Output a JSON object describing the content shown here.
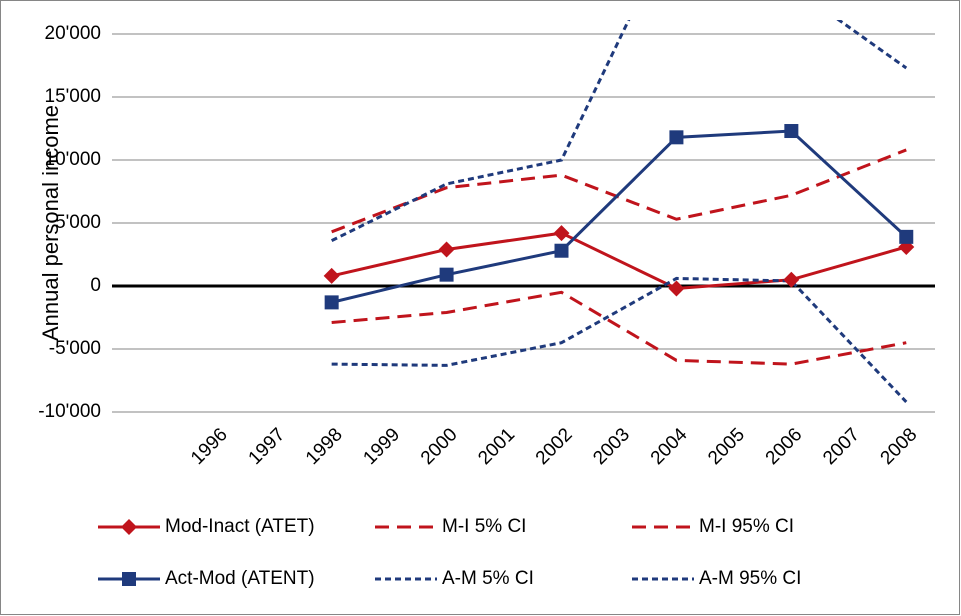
{
  "chart_data": {
    "type": "line",
    "y_label": "Annual personal income",
    "x": [
      1998,
      2000,
      2002,
      2004,
      2006,
      2008
    ],
    "xlim": [
      1995.5,
      2008.5
    ],
    "xticks": [
      1996,
      1997,
      1998,
      1999,
      2000,
      2001,
      2002,
      2003,
      2004,
      2005,
      2006,
      2007,
      2008
    ],
    "ylim": [
      -10000,
      20000
    ],
    "yticks": [
      {
        "value": -10000,
        "label": "-10'000"
      },
      {
        "value": -5000,
        "label": "-5'000"
      },
      0,
      {
        "value": 5000,
        "label": "5'000"
      },
      {
        "value": 10000,
        "label": "10'000"
      },
      {
        "value": 15000,
        "label": "15'000"
      },
      {
        "value": 20000,
        "label": "20'000"
      }
    ],
    "grid": true,
    "series": [
      {
        "name": "Mod-Inact (ATET)",
        "color": "#c0141c",
        "dash": "solid",
        "marker": "diamond",
        "values": [
          800,
          2900,
          4200,
          -200,
          500,
          3100
        ]
      },
      {
        "name": "M-I  5% CI",
        "color": "#c0141c",
        "dash": "long",
        "values": [
          -2900,
          -2100,
          -500,
          -5900,
          -6200,
          -4500
        ]
      },
      {
        "name": "M-I 95% CI",
        "color": "#c0141c",
        "dash": "long",
        "values": [
          4300,
          7800,
          8800,
          5300,
          7200,
          10800
        ]
      },
      {
        "name": "Act-Mod (ATENT)",
        "color": "#1f3a7c",
        "dash": "solid",
        "marker": "square",
        "values": [
          -1300,
          900,
          2800,
          11800,
          12300,
          3900
        ]
      },
      {
        "name": "A-M  5% CI",
        "color": "#1f3a7c",
        "dash": "short",
        "values": [
          -6200,
          -6300,
          -4500,
          600,
          400,
          -9200
        ]
      },
      {
        "name": "A-M 95% CI",
        "color": "#1f3a7c",
        "dash": "short",
        "values": [
          3600,
          8100,
          10000,
          29000,
          23800,
          17300
        ]
      }
    ]
  }
}
